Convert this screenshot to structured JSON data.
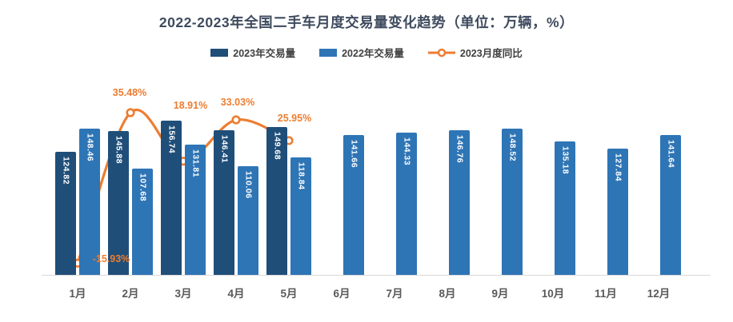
{
  "title": "2022-2023年全国二手车月度交易量变化趋势（单位：万辆，%）",
  "legend": {
    "items": [
      {
        "label": "2023年交易量",
        "color": "#1F4E79",
        "marker": "bar-swatch"
      },
      {
        "label": "2022年交易量",
        "color": "#2E75B6",
        "marker": "bar-swatch"
      },
      {
        "label": "2023月度同比",
        "color": "#ED7D31",
        "marker": "line-circle"
      }
    ]
  },
  "chart_data": {
    "type": "bar",
    "subtype": "clustered-bar-with-smoothed-line-combo",
    "title": "2022-2023年全国二手车月度交易量变化趋势（单位：万辆，%）",
    "unit_note": "单位：万辆，%",
    "categories": [
      "1月",
      "2月",
      "3月",
      "4月",
      "5月",
      "6月",
      "7月",
      "8月",
      "9月",
      "10月",
      "11月",
      "12月"
    ],
    "series": [
      {
        "name": "2023年交易量",
        "type": "bar",
        "axis": "primary",
        "color": "#1F4E79",
        "values": [
          124.82,
          145.88,
          156.74,
          146.41,
          149.68,
          null,
          null,
          null,
          null,
          null,
          null,
          null
        ]
      },
      {
        "name": "2022年交易量",
        "type": "bar",
        "axis": "primary",
        "color": "#2E75B6",
        "values": [
          148.46,
          107.68,
          131.81,
          110.06,
          118.84,
          141.66,
          144.33,
          146.76,
          148.52,
          135.18,
          127.84,
          141.64
        ]
      },
      {
        "name": "2023月度同比",
        "type": "line",
        "axis": "secondary",
        "unit": "%",
        "color": "#ED7D31",
        "smoothed": true,
        "marker": "open-circle",
        "values": [
          -15.93,
          35.48,
          18.91,
          33.03,
          25.95,
          null,
          null,
          null,
          null,
          null,
          null,
          null
        ]
      }
    ],
    "xlabel": "",
    "ylabel": "",
    "value_labels_shown": true,
    "axes_hidden": true,
    "grid": false,
    "legend_position": "top-center",
    "primary_ylim_implied": [
      0,
      200
    ],
    "secondary_ylim_implied": [
      -20,
      45
    ],
    "colors": {
      "bar_2023": "#1F4E79",
      "bar_2022": "#2E75B6",
      "line": "#ED7D31",
      "title_text": "#3E4B5E",
      "axis_label_text": "#595959",
      "axis_line": "#D9D9D9",
      "bar_value_text": "#FFFFFF"
    }
  }
}
